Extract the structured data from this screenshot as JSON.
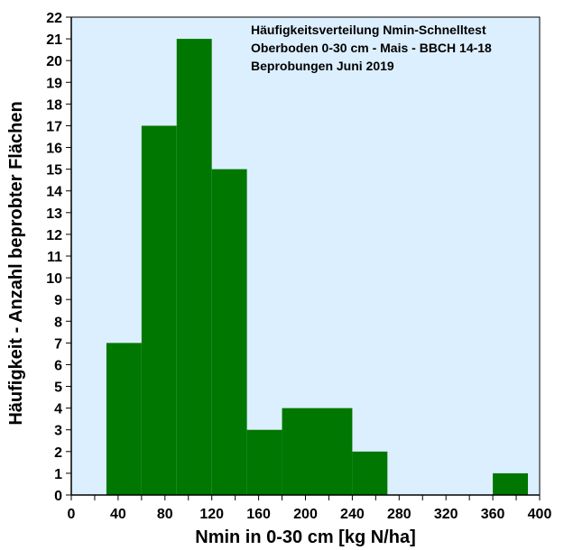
{
  "chart_data": {
    "type": "bar",
    "title_lines": [
      "Häufigkeitsverteilung Nmin-Schnelltest",
      "Oberboden 0-30 cm - Mais - BBCH 14-18",
      "Beprobungen Juni 2019"
    ],
    "xlabel": "Nmin in 0-30 cm [kg N/ha]",
    "ylabel": "Häufigkeit - Anzahl beprobter Flächen",
    "xlim": [
      0,
      400
    ],
    "ylim": [
      0,
      22
    ],
    "x_ticks": [
      0,
      40,
      80,
      120,
      160,
      200,
      240,
      280,
      320,
      360,
      400
    ],
    "y_ticks": [
      0,
      1,
      2,
      3,
      4,
      5,
      6,
      7,
      8,
      9,
      10,
      11,
      12,
      13,
      14,
      15,
      16,
      17,
      18,
      19,
      20,
      21,
      22
    ],
    "bins": [
      {
        "from": 30,
        "to": 60,
        "value": 7
      },
      {
        "from": 60,
        "to": 90,
        "value": 17
      },
      {
        "from": 90,
        "to": 120,
        "value": 21
      },
      {
        "from": 120,
        "to": 150,
        "value": 15
      },
      {
        "from": 150,
        "to": 180,
        "value": 3
      },
      {
        "from": 180,
        "to": 240,
        "value": 4
      },
      {
        "from": 240,
        "to": 270,
        "value": 2
      },
      {
        "from": 360,
        "to": 390,
        "value": 1
      }
    ],
    "bar_color": "#007700",
    "plot_background": "#dcefff",
    "grid": false
  }
}
